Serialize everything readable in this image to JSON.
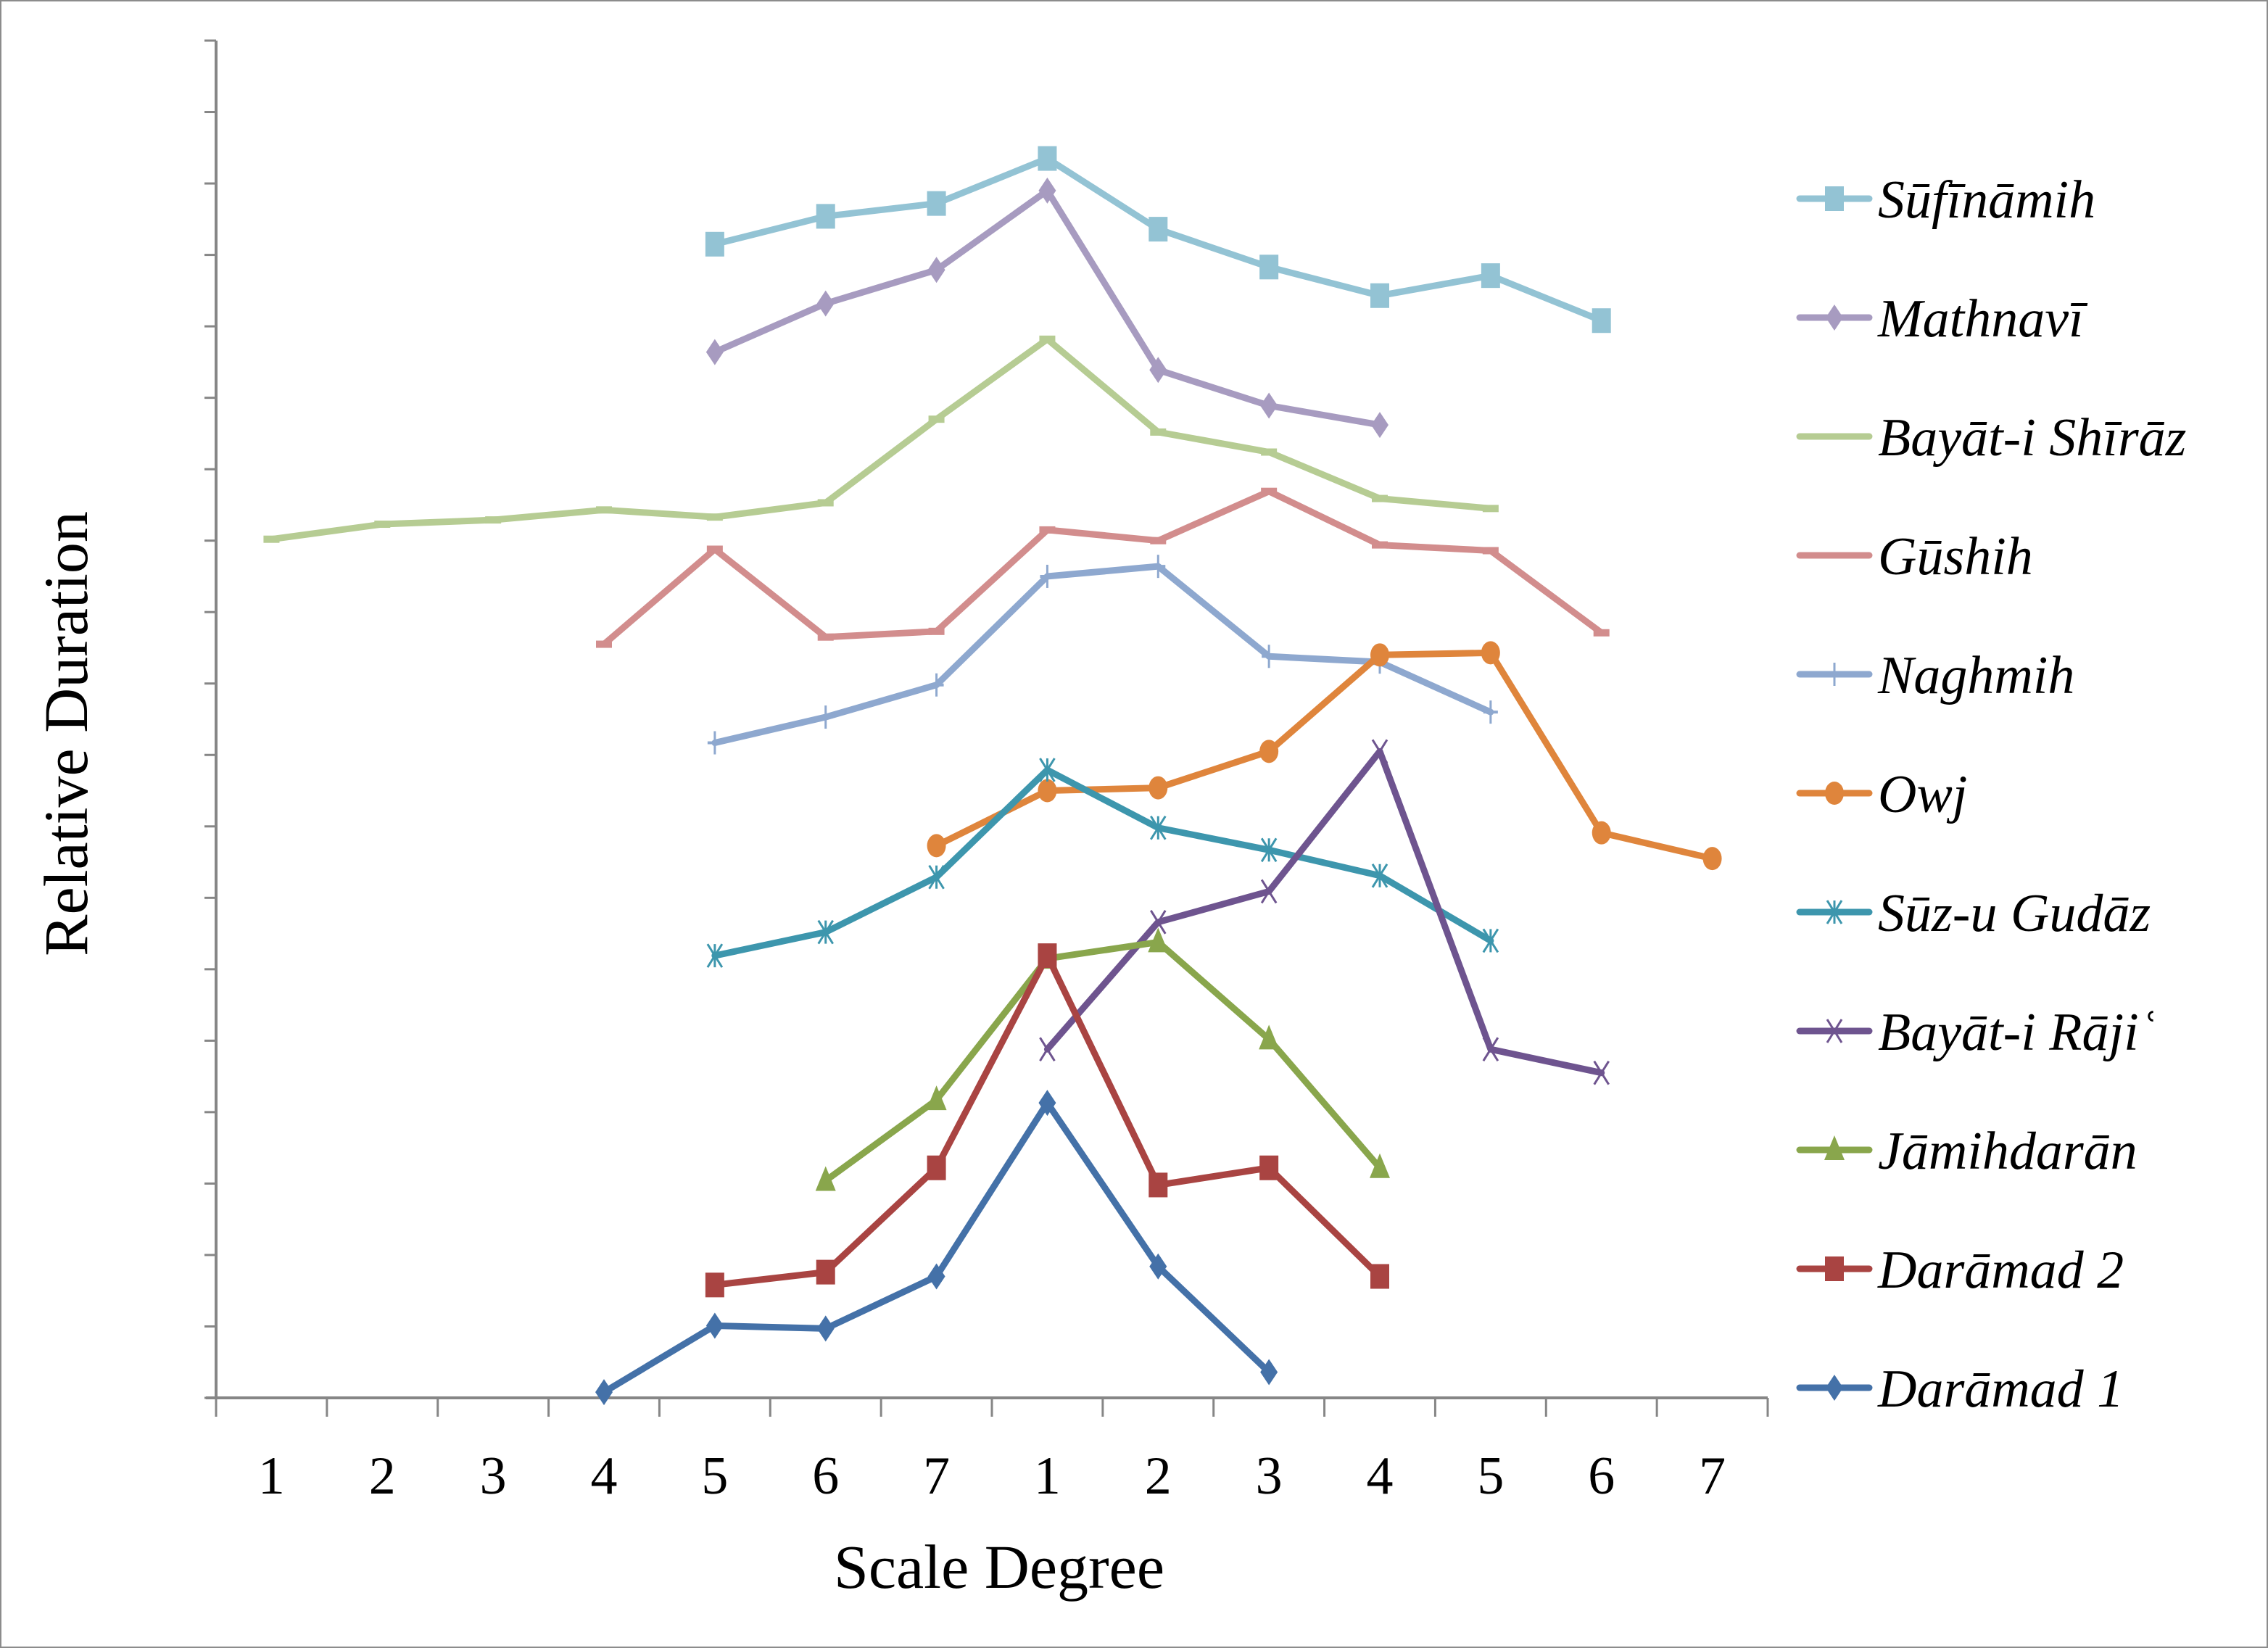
{
  "chart_data": {
    "type": "line",
    "title": "",
    "xlabel": "Scale Degree",
    "ylabel": "Relative Duration",
    "categories": [
      "1",
      "2",
      "3",
      "4",
      "5",
      "6",
      "7",
      "1",
      "2",
      "3",
      "4",
      "5",
      "6",
      "7"
    ],
    "ylim": [
      0,
      19
    ],
    "y_tick_count": 19,
    "y_tick_labels_shown": false,
    "grid": false,
    "legend_position": "right",
    "series": [
      {
        "name": "Sūfīnāmih",
        "color": "#93c3d4",
        "marker": "square",
        "start_index": 4,
        "values": [
          16.15,
          16.54,
          16.72,
          17.35,
          16.36,
          15.83,
          15.43,
          15.71,
          15.08
        ]
      },
      {
        "name": "Mathnavī",
        "color": "#a79bc0",
        "marker": "diamond",
        "start_index": 4,
        "values": [
          14.64,
          15.32,
          15.79,
          16.9,
          14.39,
          13.89,
          13.62
        ]
      },
      {
        "name": "Bayāt-i Shīrāz",
        "color": "#b6cc93",
        "marker": "dash",
        "start_index": 0,
        "values": [
          12.02,
          12.23,
          12.29,
          12.43,
          12.33,
          12.53,
          13.7,
          14.82,
          13.52,
          13.24,
          12.59,
          12.45
        ]
      },
      {
        "name": "Gūshih",
        "color": "#d28d8d",
        "marker": "dash",
        "start_index": 3,
        "values": [
          10.55,
          11.88,
          10.65,
          10.73,
          12.15,
          12.0,
          12.69,
          11.94,
          11.86,
          10.71
        ]
      },
      {
        "name": "Naghmih",
        "color": "#8ea8cf",
        "marker": "plus",
        "start_index": 4,
        "values": [
          9.17,
          9.53,
          9.98,
          11.5,
          11.64,
          10.38,
          10.3,
          9.6
        ]
      },
      {
        "name": "Owj",
        "color": "#df853c",
        "marker": "circle",
        "start_index": 6,
        "values": [
          7.73,
          8.5,
          8.54,
          9.05,
          10.4,
          10.43,
          7.91,
          7.55
        ]
      },
      {
        "name": "Sūz-u Gudāz",
        "color": "#3d96ad",
        "marker": "asterisk",
        "start_index": 4,
        "values": [
          6.19,
          6.52,
          7.29,
          8.79,
          7.98,
          7.67,
          7.31,
          6.4
        ]
      },
      {
        "name": "Bayāt-i Rājiʿ",
        "color": "#6e548f",
        "marker": "x",
        "start_index": 7,
        "values": [
          4.88,
          6.66,
          7.09,
          9.05,
          4.88,
          4.55
        ]
      },
      {
        "name": "Jāmihdarān",
        "color": "#89a64c",
        "marker": "triangle",
        "start_index": 5,
        "values": [
          3.04,
          4.17,
          6.15,
          6.38,
          5.02,
          3.22
        ]
      },
      {
        "name": "Darāmad 2",
        "color": "#a94442",
        "marker": "square",
        "start_index": 4,
        "values": [
          1.58,
          1.76,
          3.22,
          6.19,
          2.98,
          3.22,
          1.7
        ]
      },
      {
        "name": "Darāmad 1",
        "color": "#4471a8",
        "marker": "diamond",
        "start_index": 3,
        "values": [
          0.08,
          1.01,
          0.97,
          1.7,
          4.13,
          1.84,
          0.36
        ]
      }
    ]
  }
}
